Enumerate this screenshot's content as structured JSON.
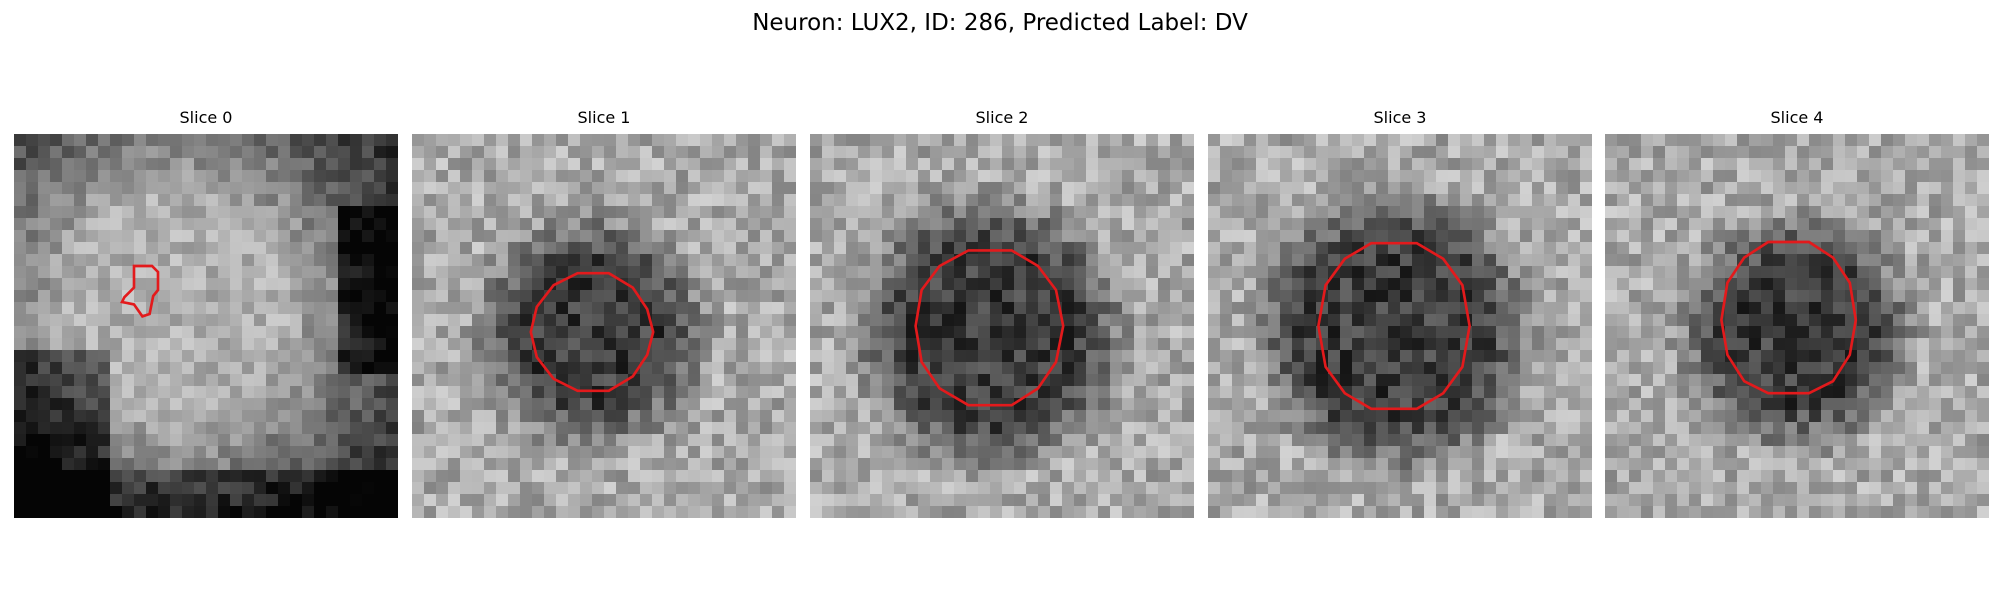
{
  "figure": {
    "title": "Neuron: LUX2, ID: 286, Predicted Label: DV"
  },
  "panels": [
    {
      "title": "Slice 0",
      "dark_center": false,
      "seed": 11
    },
    {
      "title": "Slice 1",
      "dark_center": true,
      "seed": 23
    },
    {
      "title": "Slice 2",
      "dark_center": true,
      "seed": 37
    },
    {
      "title": "Slice 3",
      "dark_center": true,
      "seed": 41
    },
    {
      "title": "Slice 4",
      "dark_center": true,
      "seed": 53
    }
  ],
  "colors": {
    "contour": "#e31a1c"
  }
}
